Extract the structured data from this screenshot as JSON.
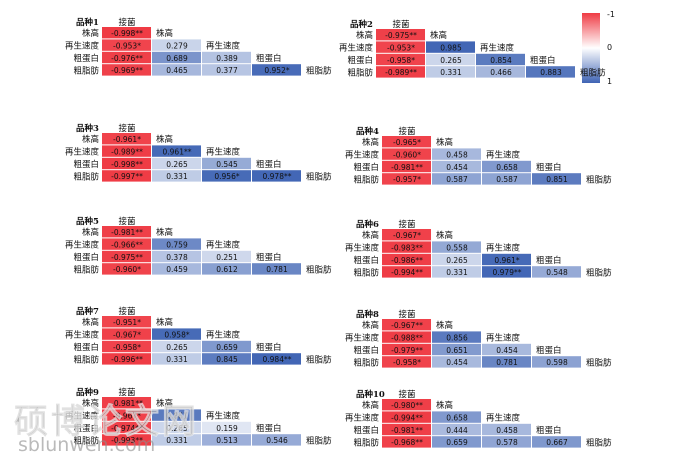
{
  "legend": {
    "top": "-1",
    "mid": "0",
    "bottom": "1"
  },
  "watermark": {
    "text": "硕博论文网",
    "url": "sblunwen.com"
  },
  "chart_data": {
    "type": "heatmap",
    "colors": {
      "negative": "#ef3b44",
      "zero": "#ffffff",
      "positive": "#3f64b4"
    },
    "panels": [
      {
        "title": "品种1",
        "vars": [
          "接菌",
          "株高",
          "再生速度",
          "粗蛋白",
          "粗脂肪"
        ],
        "labels": [
          "-0.998**",
          "-0.953*",
          "0.279",
          "-0.976**",
          "0.689",
          "0.389",
          "-0.969**",
          "0.465",
          "0.377",
          "0.952*"
        ],
        "values": [
          -0.998,
          -0.953,
          0.279,
          -0.976,
          0.689,
          0.389,
          -0.969,
          0.465,
          0.377,
          0.952
        ]
      },
      {
        "title": "品种2",
        "vars": [
          "接菌",
          "株高",
          "再生速度",
          "粗蛋白",
          "粗脂肪"
        ],
        "labels": [
          "-0.975**",
          "-0.953*",
          "0.985",
          "-0.958*",
          "0.265",
          "0.854",
          "-0.989**",
          "0.331",
          "0.466",
          "0.883"
        ],
        "values": [
          -0.975,
          -0.953,
          0.985,
          -0.958,
          0.265,
          0.854,
          -0.989,
          0.331,
          0.466,
          0.883
        ]
      },
      {
        "title": "品种3",
        "vars": [
          "接菌",
          "株高",
          "再生速度",
          "粗蛋白",
          "粗脂肪"
        ],
        "labels": [
          "-0.961*",
          "-0.989**",
          "0.961**",
          "-0.998**",
          "0.265",
          "0.545",
          "-0.997**",
          "0.331",
          "0.956*",
          "0.978**"
        ],
        "values": [
          -0.961,
          -0.989,
          0.961,
          -0.998,
          0.265,
          0.545,
          -0.997,
          0.331,
          0.956,
          0.978
        ]
      },
      {
        "title": "品种4",
        "vars": [
          "接菌",
          "株高",
          "再生速度",
          "粗蛋白",
          "粗脂肪"
        ],
        "labels": [
          "-0.965*",
          "-0.960*",
          "0.458",
          "-0.981**",
          "0.454",
          "0.658",
          "-0.957*",
          "0.587",
          "0.587",
          "0.851"
        ],
        "values": [
          -0.965,
          -0.96,
          0.458,
          -0.981,
          0.454,
          0.658,
          -0.957,
          0.587,
          0.587,
          0.851
        ]
      },
      {
        "title": "品种5",
        "vars": [
          "接菌",
          "株高",
          "再生速度",
          "粗蛋白",
          "粗脂肪"
        ],
        "labels": [
          "-0.981**",
          "-0.966**",
          "0.759",
          "-0.975**",
          "0.378",
          "0.251",
          "-0.960*",
          "0.459",
          "0.612",
          "0.781"
        ],
        "values": [
          -0.981,
          -0.966,
          0.759,
          -0.975,
          0.378,
          0.251,
          -0.96,
          0.459,
          0.612,
          0.781
        ]
      },
      {
        "title": "品种6",
        "vars": [
          "接菌",
          "株高",
          "再生速度",
          "粗蛋白",
          "粗脂肪"
        ],
        "labels": [
          "-0.967*",
          "-0.983**",
          "0.558",
          "-0.986**",
          "0.265",
          "0.961*",
          "-0.994**",
          "0.331",
          "0.979**",
          "0.548"
        ],
        "values": [
          -0.967,
          -0.983,
          0.558,
          -0.986,
          0.265,
          0.961,
          -0.994,
          0.331,
          0.979,
          0.548
        ]
      },
      {
        "title": "品种7",
        "vars": [
          "接菌",
          "株高",
          "再生速度",
          "粗蛋白",
          "粗脂肪"
        ],
        "labels": [
          "-0.951*",
          "-0.967*",
          "0.958*",
          "-0.958*",
          "0.265",
          "0.659",
          "-0.996**",
          "0.331",
          "0.845",
          "0.984**"
        ],
        "values": [
          -0.951,
          -0.967,
          0.958,
          -0.958,
          0.265,
          0.659,
          -0.996,
          0.331,
          0.845,
          0.984
        ]
      },
      {
        "title": "品种8",
        "vars": [
          "接菌",
          "株高",
          "再生速度",
          "粗蛋白",
          "粗脂肪"
        ],
        "labels": [
          "-0.967**",
          "-0.988**",
          "0.856",
          "-0.979**",
          "0.651",
          "0.454",
          "-0.958*",
          "0.454",
          "0.781",
          "0.598"
        ],
        "values": [
          -0.967,
          -0.988,
          0.856,
          -0.979,
          0.651,
          0.454,
          -0.958,
          0.454,
          0.781,
          0.598
        ]
      },
      {
        "title": "品种9",
        "vars": [
          "接菌",
          "株高",
          "再生速度",
          "粗蛋白",
          "粗脂肪"
        ],
        "labels": [
          "-0.981**",
          "-0.967*",
          "0.861",
          "-0.974**",
          "0.265",
          "0.159",
          "-0.993**",
          "0.331",
          "0.513",
          "0.546"
        ],
        "values": [
          -0.981,
          -0.967,
          0.861,
          -0.974,
          0.265,
          0.159,
          -0.993,
          0.331,
          0.513,
          0.546
        ]
      },
      {
        "title": "品种10",
        "vars": [
          "接菌",
          "株高",
          "再生速度",
          "粗蛋白",
          "粗脂肪"
        ],
        "labels": [
          "-0.980**",
          "-0.994**",
          "0.658",
          "-0.981**",
          "0.444",
          "0.458",
          "-0.968**",
          "0.659",
          "0.578",
          "0.667"
        ],
        "values": [
          -0.98,
          -0.994,
          0.658,
          -0.981,
          0.444,
          0.458,
          -0.968,
          0.659,
          0.578,
          0.667
        ]
      }
    ]
  }
}
